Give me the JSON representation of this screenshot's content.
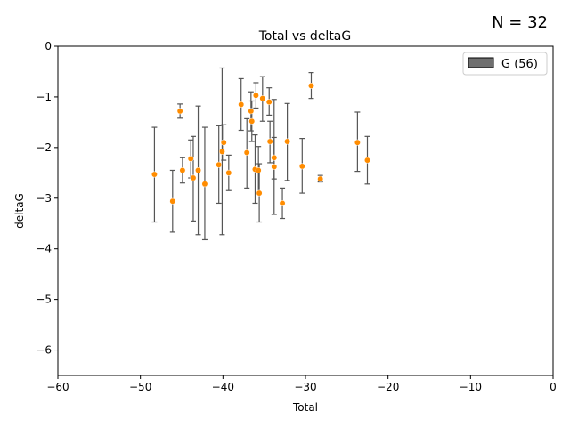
{
  "corner_text": "N = 32",
  "chart_data": {
    "type": "scatter",
    "title": "Total vs deltaG",
    "xlabel": "Total",
    "ylabel": "deltaG",
    "xlim": [
      -60,
      0
    ],
    "ylim": [
      -6.5,
      0
    ],
    "xticks": [
      -60,
      -50,
      -40,
      -30,
      -20,
      -10,
      0
    ],
    "xtick_labels": [
      "−60",
      "−50",
      "−40",
      "−30",
      "−20",
      "−10",
      "0"
    ],
    "yticks": [
      -6,
      -5,
      -4,
      -3,
      -2,
      -1,
      0
    ],
    "ytick_labels": [
      "−6",
      "−5",
      "−4",
      "−3",
      "−2",
      "−1",
      "0"
    ],
    "grid": false,
    "legend": {
      "position": "top-right",
      "entries": [
        {
          "label": "G (56)",
          "color": "#6f6f6f"
        }
      ]
    },
    "marker_color": "#ff8c00",
    "errorbar_color": "#555555",
    "series": [
      {
        "name": "G (56)",
        "points": [
          {
            "x": -48.3,
            "y": -2.53,
            "ylo": -3.47,
            "yhi": -1.6
          },
          {
            "x": -46.1,
            "y": -3.06,
            "ylo": -3.67,
            "yhi": -2.45
          },
          {
            "x": -45.2,
            "y": -1.28,
            "ylo": -1.42,
            "yhi": -1.14
          },
          {
            "x": -44.9,
            "y": -2.45,
            "ylo": -2.7,
            "yhi": -2.2
          },
          {
            "x": -43.9,
            "y": -2.22,
            "ylo": -2.6,
            "yhi": -1.85
          },
          {
            "x": -43.6,
            "y": -2.6,
            "ylo": -3.45,
            "yhi": -1.78
          },
          {
            "x": -43.0,
            "y": -2.45,
            "ylo": -3.72,
            "yhi": -1.18
          },
          {
            "x": -42.2,
            "y": -2.72,
            "ylo": -3.82,
            "yhi": -1.6
          },
          {
            "x": -40.5,
            "y": -2.34,
            "ylo": -3.1,
            "yhi": -1.57
          },
          {
            "x": -40.1,
            "y": -2.08,
            "ylo": -3.72,
            "yhi": -0.43
          },
          {
            "x": -39.9,
            "y": -1.9,
            "ylo": -2.25,
            "yhi": -1.55
          },
          {
            "x": -39.3,
            "y": -2.5,
            "ylo": -2.85,
            "yhi": -2.15
          },
          {
            "x": -37.8,
            "y": -1.15,
            "ylo": -1.66,
            "yhi": -0.64
          },
          {
            "x": -37.1,
            "y": -2.1,
            "ylo": -2.8,
            "yhi": -1.43
          },
          {
            "x": -36.6,
            "y": -1.28,
            "ylo": -1.67,
            "yhi": -0.9
          },
          {
            "x": -36.5,
            "y": -1.48,
            "ylo": -1.88,
            "yhi": -1.08
          },
          {
            "x": -36.1,
            "y": -2.43,
            "ylo": -3.1,
            "yhi": -1.75
          },
          {
            "x": -36.0,
            "y": -0.97,
            "ylo": -1.22,
            "yhi": -0.72
          },
          {
            "x": -35.7,
            "y": -2.45,
            "ylo": -2.9,
            "yhi": -1.98
          },
          {
            "x": -35.6,
            "y": -2.9,
            "ylo": -3.47,
            "yhi": -2.32
          },
          {
            "x": -35.2,
            "y": -1.03,
            "ylo": -1.48,
            "yhi": -0.6
          },
          {
            "x": -34.4,
            "y": -1.1,
            "ylo": -1.36,
            "yhi": -0.82
          },
          {
            "x": -34.3,
            "y": -1.88,
            "ylo": -2.3,
            "yhi": -1.48
          },
          {
            "x": -33.8,
            "y": -2.2,
            "ylo": -2.62,
            "yhi": -1.8
          },
          {
            "x": -33.8,
            "y": -2.38,
            "ylo": -3.32,
            "yhi": -1.05
          },
          {
            "x": -32.8,
            "y": -3.1,
            "ylo": -3.4,
            "yhi": -2.8
          },
          {
            "x": -32.2,
            "y": -1.88,
            "ylo": -2.65,
            "yhi": -1.13
          },
          {
            "x": -30.4,
            "y": -2.37,
            "ylo": -2.9,
            "yhi": -1.82
          },
          {
            "x": -29.3,
            "y": -0.78,
            "ylo": -1.03,
            "yhi": -0.52
          },
          {
            "x": -28.2,
            "y": -2.62,
            "ylo": -2.68,
            "yhi": -2.55
          },
          {
            "x": -23.7,
            "y": -1.9,
            "ylo": -2.47,
            "yhi": -1.3
          },
          {
            "x": -22.5,
            "y": -2.25,
            "ylo": -2.72,
            "yhi": -1.78
          }
        ]
      }
    ]
  }
}
